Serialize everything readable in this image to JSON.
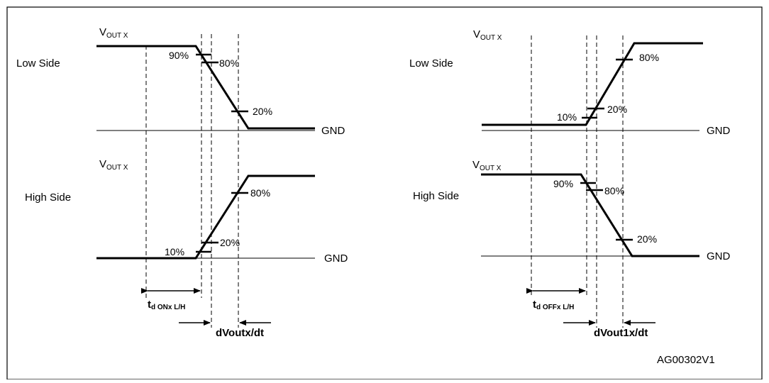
{
  "left": {
    "low_side": {
      "label": "Low Side",
      "vout_main": "V",
      "vout_sub": "OUT X",
      "pct_90": "90%",
      "pct_80": "80%",
      "pct_20": "20%",
      "gnd": "GND"
    },
    "high_side": {
      "label": "High Side",
      "vout_main": "V",
      "vout_sub": "OUT X",
      "pct_80": "80%",
      "pct_20": "20%",
      "pct_10": "10%",
      "gnd": "GND"
    },
    "timing_main": "t",
    "timing_sub": "d ONx L/H",
    "slope_label": "dVoutx/dt"
  },
  "right": {
    "low_side": {
      "label": "Low Side",
      "vout_main": "V",
      "vout_sub": "OUT X",
      "pct_80": "80%",
      "pct_20": "20%",
      "pct_10": "10%",
      "gnd": "GND"
    },
    "high_side": {
      "label": "High Side",
      "vout_main": "V",
      "vout_sub": "OUT X",
      "pct_90": "90%",
      "pct_80": "80%",
      "pct_20": "20%",
      "gnd": "GND"
    },
    "timing_main": "t",
    "timing_sub": "d OFFx L/H",
    "slope_label": "dVout1x/dt"
  },
  "figure_id": "AG00302V1"
}
